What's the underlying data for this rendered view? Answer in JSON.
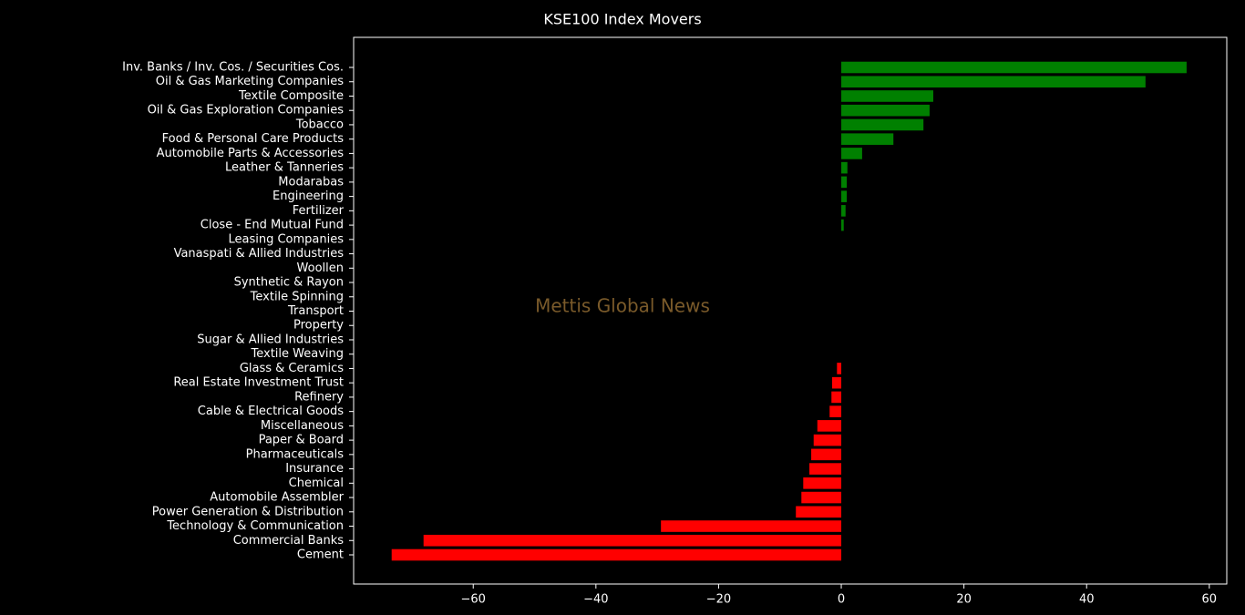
{
  "chart_data": {
    "type": "barh",
    "title": "KSE100 Index Movers",
    "watermark": "Mettis Global News",
    "categories": [
      "Inv. Banks / Inv. Cos. / Securities Cos.",
      "Oil & Gas Marketing Companies",
      "Textile Composite",
      "Oil & Gas Exploration Companies",
      "Tobacco",
      "Food & Personal Care Products",
      "Automobile Parts & Accessories",
      "Leather & Tanneries",
      "Modarabas",
      "Engineering",
      "Fertilizer",
      "Close - End Mutual Fund",
      "Leasing Companies",
      "Vanaspati & Allied Industries",
      "Woollen",
      "Synthetic & Rayon",
      "Textile Spinning",
      "Transport",
      "Property",
      "Sugar & Allied Industries",
      "Textile Weaving",
      "Glass & Ceramics",
      "Real Estate Investment Trust",
      "Refinery",
      "Cable & Electrical Goods",
      "Miscellaneous",
      "Paper & Board",
      "Pharmaceuticals",
      "Insurance",
      "Chemical",
      "Automobile Assembler",
      "Power Generation & Distribution",
      "Technology & Communication",
      "Commercial Banks",
      "Cement"
    ],
    "values": [
      56.3,
      49.6,
      15.0,
      14.4,
      13.4,
      8.5,
      3.4,
      1.0,
      0.9,
      0.9,
      0.7,
      0.4,
      0,
      0,
      0,
      0,
      0,
      0,
      0,
      0,
      0,
      -0.7,
      -1.5,
      -1.6,
      -1.9,
      -3.9,
      -4.5,
      -4.9,
      -5.2,
      -6.2,
      -6.5,
      -7.4,
      -29.4,
      -68.1,
      -73.3
    ],
    "colors": [
      "green",
      "green",
      "green",
      "green",
      "green",
      "green",
      "green",
      "green",
      "green",
      "green",
      "green",
      "green",
      "green",
      "green",
      "green",
      "green",
      "green",
      "green",
      "green",
      "green",
      "green",
      "red",
      "red",
      "red",
      "red",
      "red",
      "red",
      "red",
      "red",
      "red",
      "red",
      "red",
      "red",
      "red",
      "red"
    ],
    "xlim": [
      -79.5,
      62.85
    ],
    "xticks": [
      {
        "value": -60,
        "label": "−60"
      },
      {
        "value": -40,
        "label": "−40"
      },
      {
        "value": -20,
        "label": "−20"
      },
      0,
      20,
      40,
      60
    ]
  }
}
